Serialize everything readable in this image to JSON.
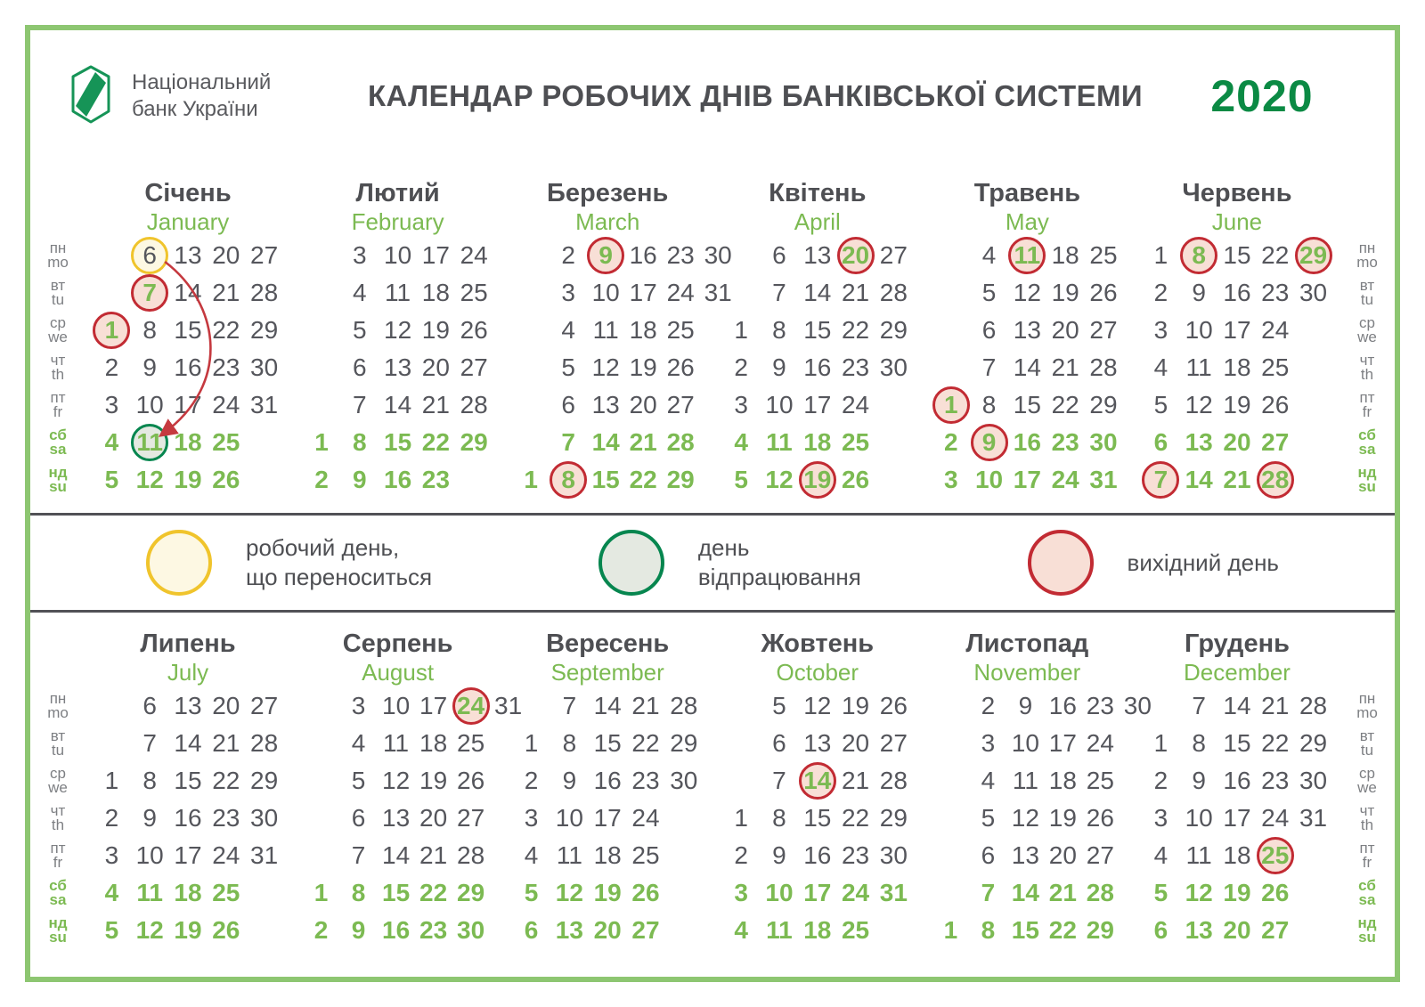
{
  "header": {
    "logo_line1": "Національний",
    "logo_line2": "банк України",
    "title": "КАЛЕНДАР РОБОЧИХ ДНІВ БАНКІВСЬКОЇ СИСТЕМИ",
    "year": "2020"
  },
  "dow": [
    {
      "uk": "пн",
      "en": "mo",
      "weekend": false
    },
    {
      "uk": "вт",
      "en": "tu",
      "weekend": false
    },
    {
      "uk": "ср",
      "en": "we",
      "weekend": false
    },
    {
      "uk": "чт",
      "en": "th",
      "weekend": false
    },
    {
      "uk": "пт",
      "en": "fr",
      "weekend": false
    },
    {
      "uk": "сб",
      "en": "sa",
      "weekend": true
    },
    {
      "uk": "нд",
      "en": "su",
      "weekend": true
    }
  ],
  "legend": {
    "items": [
      {
        "type": "moved",
        "lines": [
          "робочий день,",
          "що переноситься"
        ]
      },
      {
        "type": "workoff",
        "lines": [
          "день",
          "відпрацювання"
        ]
      },
      {
        "type": "holiday",
        "lines": [
          "вихідний день"
        ]
      }
    ]
  },
  "months_top": [
    {
      "id": "january",
      "uk": "Січень",
      "en": "January",
      "cols": 5,
      "rows": [
        [
          null,
          6,
          13,
          20,
          27
        ],
        [
          null,
          7,
          14,
          21,
          28
        ],
        [
          1,
          8,
          15,
          22,
          29
        ],
        [
          2,
          9,
          16,
          23,
          30
        ],
        [
          3,
          10,
          17,
          24,
          31
        ],
        [
          4,
          11,
          18,
          25,
          null
        ],
        [
          5,
          12,
          19,
          26,
          null
        ]
      ],
      "marks": {
        "1": "holiday",
        "6": "moved",
        "7": "holiday",
        "11": "workoff"
      },
      "arrow": {
        "from": 6,
        "to": 11
      }
    },
    {
      "id": "february",
      "uk": "Лютий",
      "en": "February",
      "cols": 5,
      "rows": [
        [
          null,
          3,
          10,
          17,
          24
        ],
        [
          null,
          4,
          11,
          18,
          25
        ],
        [
          null,
          5,
          12,
          19,
          26
        ],
        [
          null,
          6,
          13,
          20,
          27
        ],
        [
          null,
          7,
          14,
          21,
          28
        ],
        [
          1,
          8,
          15,
          22,
          29
        ],
        [
          2,
          9,
          16,
          23,
          null
        ]
      ],
      "marks": {}
    },
    {
      "id": "march",
      "uk": "Березень",
      "en": "March",
      "cols": 6,
      "rows": [
        [
          null,
          2,
          9,
          16,
          23,
          30
        ],
        [
          null,
          3,
          10,
          17,
          24,
          31
        ],
        [
          null,
          4,
          11,
          18,
          25,
          null
        ],
        [
          null,
          5,
          12,
          19,
          26,
          null
        ],
        [
          null,
          6,
          13,
          20,
          27,
          null
        ],
        [
          null,
          7,
          14,
          21,
          28,
          null
        ],
        [
          1,
          8,
          15,
          22,
          29,
          null
        ]
      ],
      "marks": {
        "8": "holiday",
        "9": "holiday"
      }
    },
    {
      "id": "april",
      "uk": "Квітень",
      "en": "April",
      "cols": 5,
      "rows": [
        [
          null,
          6,
          13,
          20,
          27
        ],
        [
          null,
          7,
          14,
          21,
          28
        ],
        [
          1,
          8,
          15,
          22,
          29
        ],
        [
          2,
          9,
          16,
          23,
          30
        ],
        [
          3,
          10,
          17,
          24,
          null
        ],
        [
          4,
          11,
          18,
          25,
          null
        ],
        [
          5,
          12,
          19,
          26,
          null
        ]
      ],
      "marks": {
        "19": "holiday",
        "20": "holiday"
      }
    },
    {
      "id": "may",
      "uk": "Травень",
      "en": "May",
      "cols": 5,
      "rows": [
        [
          null,
          4,
          11,
          18,
          25
        ],
        [
          null,
          5,
          12,
          19,
          26
        ],
        [
          null,
          6,
          13,
          20,
          27
        ],
        [
          null,
          7,
          14,
          21,
          28
        ],
        [
          1,
          8,
          15,
          22,
          29
        ],
        [
          2,
          9,
          16,
          23,
          30
        ],
        [
          3,
          10,
          17,
          24,
          31
        ]
      ],
      "marks": {
        "1": "holiday",
        "9": "holiday",
        "11": "holiday"
      }
    },
    {
      "id": "june",
      "uk": "Червень",
      "en": "June",
      "cols": 5,
      "rows": [
        [
          1,
          8,
          15,
          22,
          29
        ],
        [
          2,
          9,
          16,
          23,
          30
        ],
        [
          3,
          10,
          17,
          24,
          null
        ],
        [
          4,
          11,
          18,
          25,
          null
        ],
        [
          5,
          12,
          19,
          26,
          null
        ],
        [
          6,
          13,
          20,
          27,
          null
        ],
        [
          7,
          14,
          21,
          28,
          null
        ]
      ],
      "marks": {
        "7": "holiday",
        "8": "holiday",
        "28": "holiday",
        "29": "holiday"
      }
    }
  ],
  "months_bottom": [
    {
      "id": "july",
      "uk": "Липень",
      "en": "July",
      "cols": 5,
      "rows": [
        [
          null,
          6,
          13,
          20,
          27
        ],
        [
          null,
          7,
          14,
          21,
          28
        ],
        [
          1,
          8,
          15,
          22,
          29
        ],
        [
          2,
          9,
          16,
          23,
          30
        ],
        [
          3,
          10,
          17,
          24,
          31
        ],
        [
          4,
          11,
          18,
          25,
          null
        ],
        [
          5,
          12,
          19,
          26,
          null
        ]
      ],
      "marks": {}
    },
    {
      "id": "august",
      "uk": "Серпень",
      "en": "August",
      "cols": 6,
      "rows": [
        [
          null,
          3,
          10,
          17,
          24,
          31
        ],
        [
          null,
          4,
          11,
          18,
          25,
          null
        ],
        [
          null,
          5,
          12,
          19,
          26,
          null
        ],
        [
          null,
          6,
          13,
          20,
          27,
          null
        ],
        [
          null,
          7,
          14,
          21,
          28,
          null
        ],
        [
          1,
          8,
          15,
          22,
          29,
          null
        ],
        [
          2,
          9,
          16,
          23,
          30,
          null
        ]
      ],
      "marks": {
        "24": "holiday"
      }
    },
    {
      "id": "september",
      "uk": "Вересень",
      "en": "September",
      "cols": 5,
      "rows": [
        [
          null,
          7,
          14,
          21,
          28
        ],
        [
          1,
          8,
          15,
          22,
          29
        ],
        [
          2,
          9,
          16,
          23,
          30
        ],
        [
          3,
          10,
          17,
          24,
          null
        ],
        [
          4,
          11,
          18,
          25,
          null
        ],
        [
          5,
          12,
          19,
          26,
          null
        ],
        [
          6,
          13,
          20,
          27,
          null
        ]
      ],
      "marks": {}
    },
    {
      "id": "october",
      "uk": "Жовтень",
      "en": "October",
      "cols": 5,
      "rows": [
        [
          null,
          5,
          12,
          19,
          26
        ],
        [
          null,
          6,
          13,
          20,
          27
        ],
        [
          null,
          7,
          14,
          21,
          28
        ],
        [
          1,
          8,
          15,
          22,
          29
        ],
        [
          2,
          9,
          16,
          23,
          30
        ],
        [
          3,
          10,
          17,
          24,
          31
        ],
        [
          4,
          11,
          18,
          25,
          null
        ]
      ],
      "marks": {
        "14": "holiday"
      }
    },
    {
      "id": "november",
      "uk": "Листопад",
      "en": "November",
      "cols": 6,
      "rows": [
        [
          null,
          2,
          9,
          16,
          23,
          30
        ],
        [
          null,
          3,
          10,
          17,
          24,
          null
        ],
        [
          null,
          4,
          11,
          18,
          25,
          null
        ],
        [
          null,
          5,
          12,
          19,
          26,
          null
        ],
        [
          null,
          6,
          13,
          20,
          27,
          null
        ],
        [
          null,
          7,
          14,
          21,
          28,
          null
        ],
        [
          1,
          8,
          15,
          22,
          29,
          null
        ]
      ],
      "marks": {}
    },
    {
      "id": "december",
      "uk": "Грудень",
      "en": "December",
      "cols": 5,
      "rows": [
        [
          null,
          7,
          14,
          21,
          28
        ],
        [
          1,
          8,
          15,
          22,
          29
        ],
        [
          2,
          9,
          16,
          23,
          30
        ],
        [
          3,
          10,
          17,
          24,
          31
        ],
        [
          4,
          11,
          18,
          25,
          null
        ],
        [
          5,
          12,
          19,
          26,
          null
        ],
        [
          6,
          13,
          20,
          27,
          null
        ]
      ],
      "marks": {
        "25": "holiday"
      }
    }
  ],
  "colors": {
    "accent_green": "#7cba52",
    "dark_green": "#0b8a44",
    "frame_green": "#8dc671",
    "logo_green": "#169457",
    "text_dark": "#4e4f53",
    "number_gray": "#55565c",
    "dow_gray": "#7d7f83",
    "separator": "#515156",
    "red": "#c22b33",
    "red_fill": "#f8dfd6",
    "yellow": "#f0c42c",
    "yellow_fill": "#fdf8e3",
    "workoff_green": "#06864f",
    "workoff_fill": "#e4e9e1",
    "arrow_red": "#c5393f"
  }
}
